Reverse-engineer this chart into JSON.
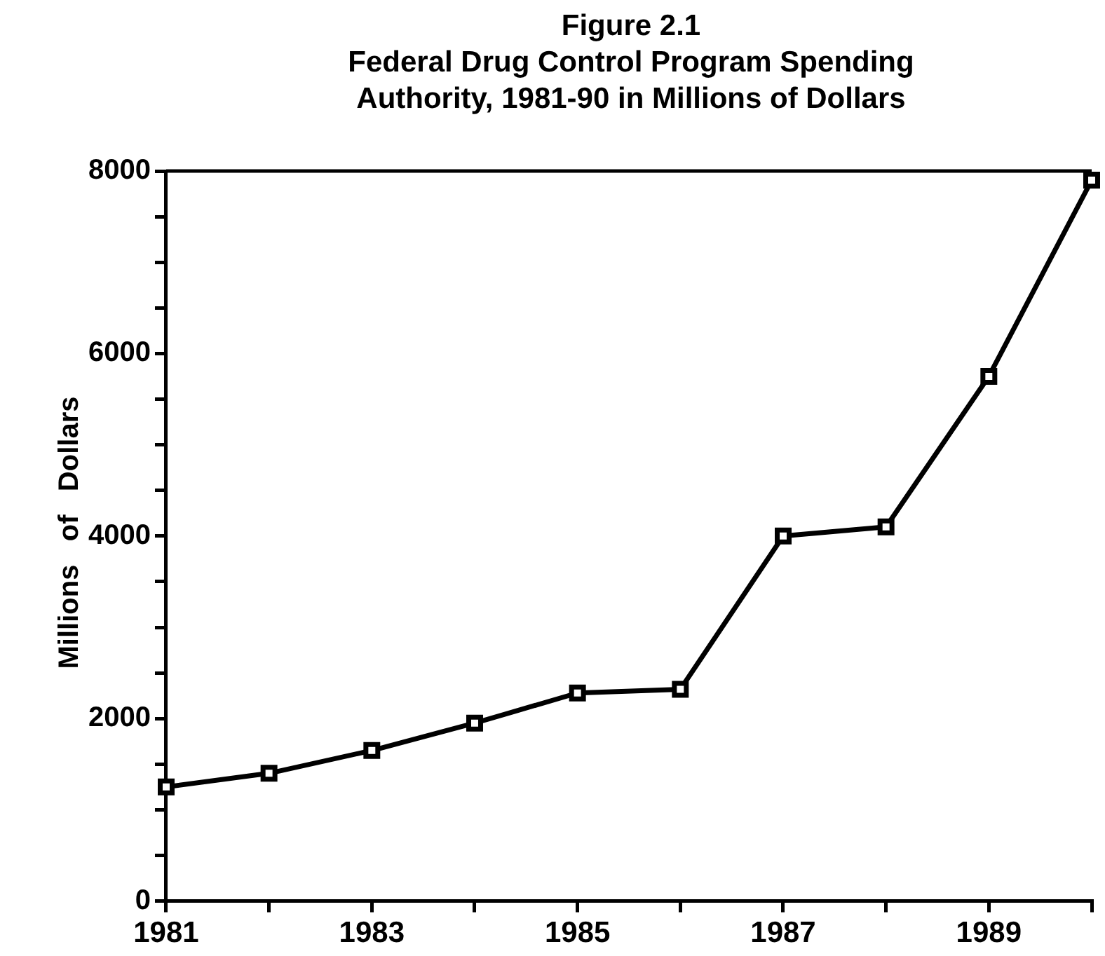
{
  "chart_data": {
    "type": "line",
    "title": "Figure 2.1",
    "subtitle": "Federal Drug Control Program Spending Authority, 1981-90 in Millions of Dollars",
    "ylabel": "Millions   of   Dollars",
    "x": [
      1981,
      1982,
      1983,
      1984,
      1985,
      1986,
      1987,
      1988,
      1989,
      1990
    ],
    "series": [
      {
        "color": "#000000",
        "values": [
          1250,
          1400,
          1650,
          1950,
          2280,
          2320,
          4000,
          4100,
          5750,
          7900
        ]
      }
    ],
    "xlim": [
      1981,
      1990
    ],
    "xticks": [
      1981,
      {
        "value": 1982,
        "label": null
      },
      1983,
      {
        "value": 1984,
        "label": null
      },
      1985,
      {
        "value": 1986,
        "label": null
      },
      1987,
      {
        "value": 1988,
        "label": null
      },
      1989,
      {
        "value": 1990,
        "label": null
      }
    ],
    "ylim": [
      0,
      8000
    ],
    "yticks": [
      0,
      {
        "value": 500,
        "label": null
      },
      {
        "value": 1000,
        "label": null
      },
      {
        "value": 1500,
        "label": null
      },
      2000,
      {
        "value": 2500,
        "label": null
      },
      {
        "value": 3000,
        "label": null
      },
      {
        "value": 3500,
        "label": null
      },
      4000,
      {
        "value": 4500,
        "label": null
      },
      {
        "value": 5000,
        "label": null
      },
      {
        "value": 5500,
        "label": null
      },
      6000,
      {
        "value": 6500,
        "label": null
      },
      {
        "value": 7000,
        "label": null
      },
      {
        "value": 7500,
        "label": null
      },
      8000
    ],
    "grid": false,
    "legend": false,
    "marker": "square",
    "line_style": "solid"
  }
}
